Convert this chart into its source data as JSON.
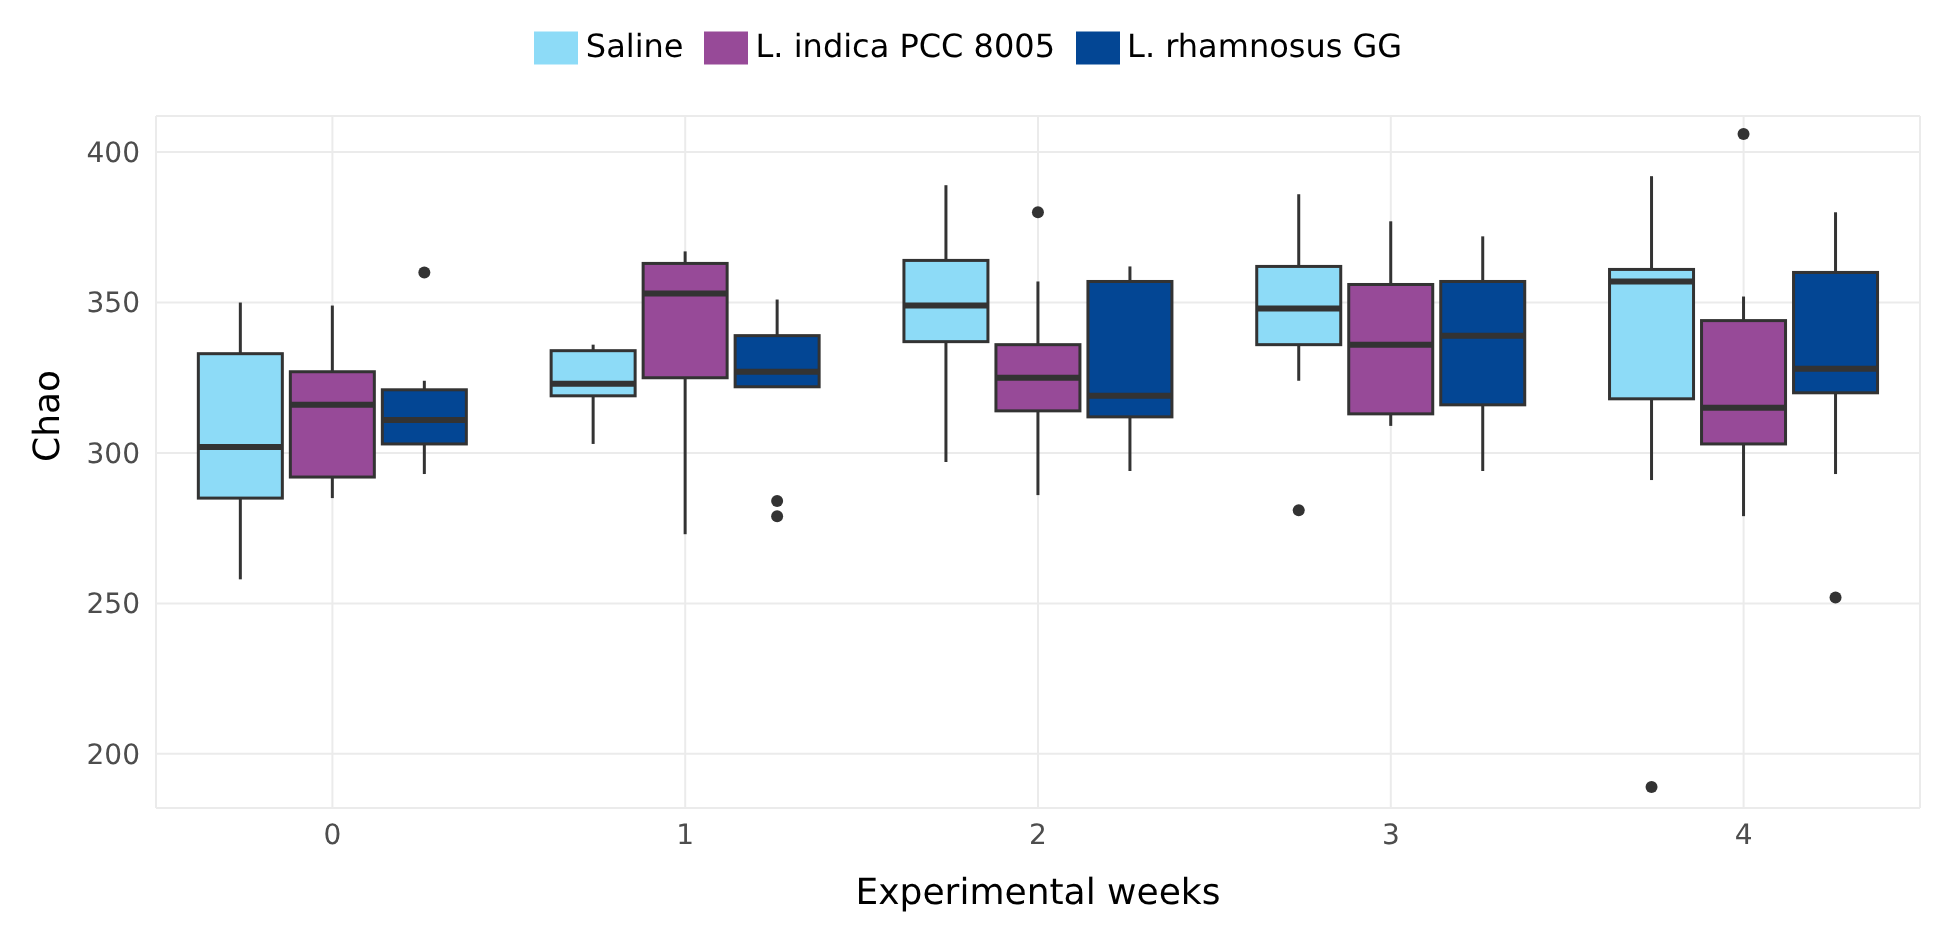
{
  "chart_data": {
    "type": "box",
    "xlabel": "Experimental weeks",
    "ylabel": "Chao",
    "categories": [
      "0",
      "1",
      "2",
      "3",
      "4"
    ],
    "ylim": [
      182,
      412
    ],
    "yticks": [
      200,
      250,
      300,
      350,
      400
    ],
    "grid": true,
    "legend": "top",
    "series": [
      {
        "name": "Saline",
        "color": "#8ddbf7",
        "boxes": [
          {
            "low": 258,
            "q1": 285,
            "median": 302,
            "q3": 333,
            "high": 350
          },
          {
            "low": 303,
            "q1": 319,
            "median": 323,
            "q3": 334,
            "high": 336
          },
          {
            "low": 297,
            "q1": 337,
            "median": 349,
            "q3": 364,
            "high": 389
          },
          {
            "low": 324,
            "q1": 336,
            "median": 348,
            "q3": 362,
            "high": 386,
            "outliers": [
              281
            ]
          },
          {
            "low": 291,
            "q1": 318,
            "median": 357,
            "q3": 361,
            "high": 392,
            "outliers": [
              189
            ]
          }
        ]
      },
      {
        "name": "L. indica PCC 8005",
        "color": "#974a98",
        "boxes": [
          {
            "low": 285,
            "q1": 292,
            "median": 316,
            "q3": 327,
            "high": 349
          },
          {
            "low": 273,
            "q1": 325,
            "median": 353,
            "q3": 363,
            "high": 367
          },
          {
            "low": 286,
            "q1": 314,
            "median": 325,
            "q3": 336,
            "high": 357,
            "outliers": [
              380
            ]
          },
          {
            "low": 309,
            "q1": 313,
            "median": 336,
            "q3": 356,
            "high": 377
          },
          {
            "low": 279,
            "q1": 303,
            "median": 315,
            "q3": 344,
            "high": 352,
            "outliers": [
              406
            ]
          }
        ]
      },
      {
        "name": "L. rhamnosus GG",
        "color": "#034694",
        "boxes": [
          {
            "low": 293,
            "q1": 303,
            "median": 311,
            "q3": 321,
            "high": 324,
            "outliers": [
              360
            ]
          },
          {
            "low": 322,
            "q1": 322,
            "median": 327,
            "q3": 339,
            "high": 351,
            "outliers": [
              284,
              279
            ]
          },
          {
            "low": 294,
            "q1": 312,
            "median": 319,
            "q3": 357,
            "high": 362
          },
          {
            "low": 294,
            "q1": 316,
            "median": 339,
            "q3": 357,
            "high": 372
          },
          {
            "low": 293,
            "q1": 320,
            "median": 328,
            "q3": 360,
            "high": 380,
            "outliers": [
              252
            ]
          }
        ]
      }
    ]
  }
}
